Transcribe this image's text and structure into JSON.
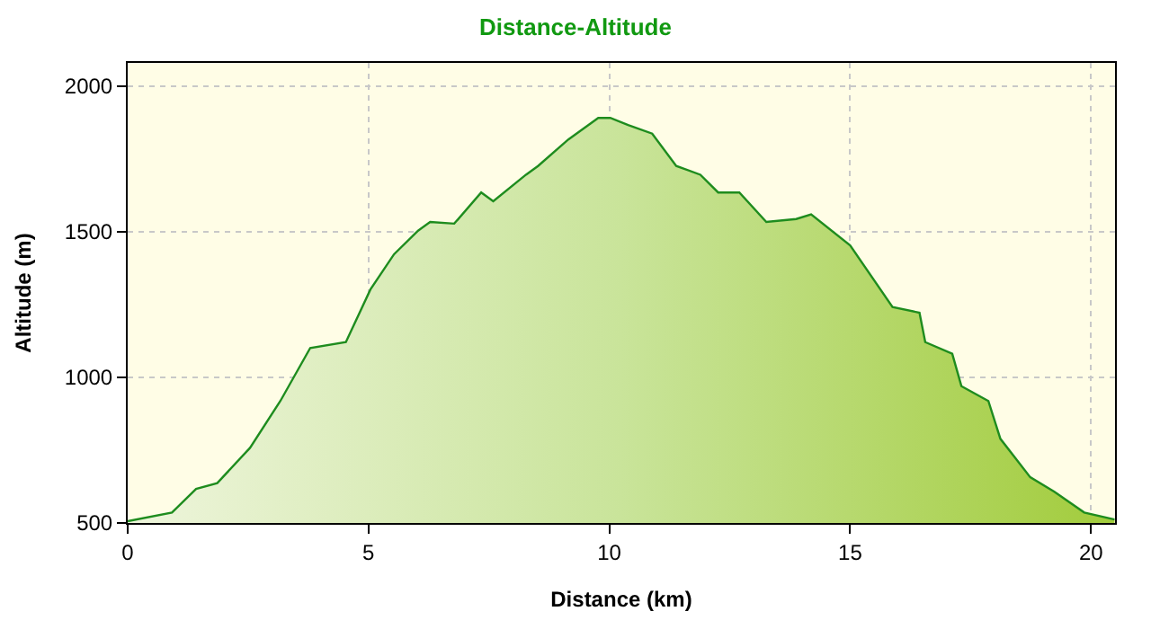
{
  "chart_data": {
    "type": "area",
    "title": "Distance-Altitude",
    "xlabel": "Distance (km)",
    "ylabel": "Altitude (m)",
    "x": [
      0,
      0.92,
      1.42,
      1.86,
      2.54,
      3.17,
      3.79,
      4.53,
      5.04,
      5.53,
      6.03,
      6.28,
      6.78,
      7.34,
      7.59,
      8.27,
      8.52,
      9.15,
      9.77,
      10.02,
      10.39,
      10.89,
      11.39,
      11.89,
      12.26,
      12.7,
      13.26,
      13.88,
      14.19,
      15.0,
      15.88,
      16.44,
      16.56,
      17.12,
      17.31,
      17.87,
      18.12,
      18.74,
      19.24,
      19.86,
      20.49
    ],
    "series": [
      {
        "color": "#1e8c1e",
        "values": [
          506,
          536,
          617,
          637,
          758,
          919,
          1101,
          1121,
          1302,
          1423,
          1504,
          1534,
          1528,
          1635,
          1605,
          1696,
          1726,
          1817,
          1891,
          1891,
          1867,
          1837,
          1726,
          1696,
          1635,
          1635,
          1534,
          1544,
          1560,
          1453,
          1242,
          1222,
          1121,
          1081,
          970,
          919,
          789,
          657,
          607,
          536,
          512
        ]
      }
    ],
    "xlim": [
      0,
      20.5
    ],
    "ylim": [
      500,
      2080
    ],
    "xticks": [
      0,
      5,
      10,
      15,
      20
    ],
    "yticks": [
      500,
      1000,
      1500,
      2000
    ],
    "grid": true,
    "legend": false
  }
}
